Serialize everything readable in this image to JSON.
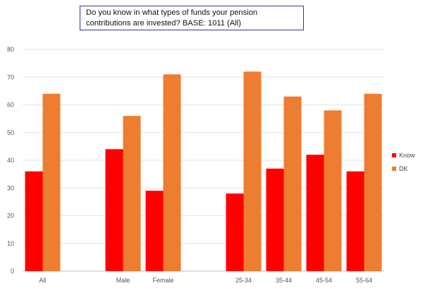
{
  "chart_data": {
    "type": "bar",
    "title_lines": [
      "Do you know in what types of funds your pension",
      "contributions are invested?   BASE: 1011 (All)"
    ],
    "categories": [
      "All",
      "",
      "Male",
      "Female",
      "",
      "25-34",
      "35-44",
      "45-54",
      "55-64"
    ],
    "series": [
      {
        "name": "Know",
        "color": "#ff0000",
        "values": [
          36,
          null,
          44,
          29,
          null,
          28,
          37,
          42,
          36
        ]
      },
      {
        "name": "DK",
        "color": "#ed7d31",
        "values": [
          64,
          null,
          56,
          71,
          null,
          72,
          63,
          58,
          64
        ]
      }
    ],
    "yticks": [
      0,
      10,
      20,
      30,
      40,
      50,
      60,
      70,
      80
    ],
    "ylim": [
      0,
      80
    ],
    "grid": true,
    "legend": "right"
  }
}
